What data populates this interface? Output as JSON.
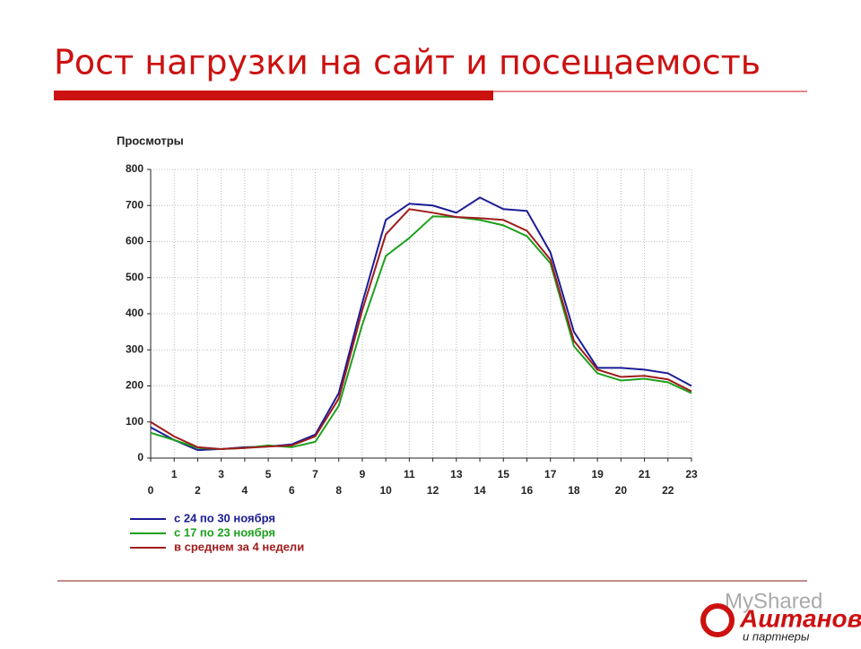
{
  "chart_data": {
    "type": "line",
    "title": "Рост нагрузки на сайт и посещаемость",
    "y_label": "Просмотры",
    "x": [
      0,
      1,
      2,
      3,
      4,
      5,
      6,
      7,
      8,
      9,
      10,
      11,
      12,
      13,
      14,
      15,
      16,
      17,
      18,
      19,
      20,
      21,
      22,
      23
    ],
    "xlim": [
      0,
      23
    ],
    "xticks": [
      0,
      1,
      2,
      3,
      4,
      5,
      6,
      7,
      8,
      9,
      10,
      11,
      12,
      13,
      14,
      15,
      16,
      17,
      18,
      19,
      20,
      21,
      22,
      23
    ],
    "ylim": [
      0,
      800
    ],
    "yticks": [
      0,
      100,
      200,
      300,
      400,
      500,
      600,
      700,
      800
    ],
    "grid": true,
    "legend": "bottom-left",
    "series": [
      {
        "name": "с 24 по 30 ноября",
        "color": "#1c1c96",
        "values": [
          85,
          50,
          22,
          25,
          30,
          32,
          38,
          65,
          180,
          430,
          660,
          705,
          700,
          680,
          722,
          690,
          685,
          570,
          350,
          250,
          250,
          245,
          235,
          200
        ]
      },
      {
        "name": "с 17 по 23 ноября",
        "color": "#1ea01e",
        "values": [
          70,
          50,
          28,
          25,
          28,
          35,
          30,
          45,
          145,
          370,
          560,
          610,
          670,
          668,
          660,
          645,
          615,
          540,
          310,
          235,
          215,
          220,
          210,
          180
        ]
      },
      {
        "name": "в среднем за 4 недели",
        "color": "#a01c1c",
        "values": [
          100,
          60,
          30,
          25,
          28,
          32,
          35,
          60,
          165,
          410,
          620,
          690,
          680,
          668,
          665,
          660,
          630,
          550,
          325,
          245,
          225,
          228,
          218,
          185
        ]
      }
    ]
  },
  "watermark": "MyShared",
  "logo": {
    "name": "Аштанов",
    "tagline": "и партнеры"
  }
}
